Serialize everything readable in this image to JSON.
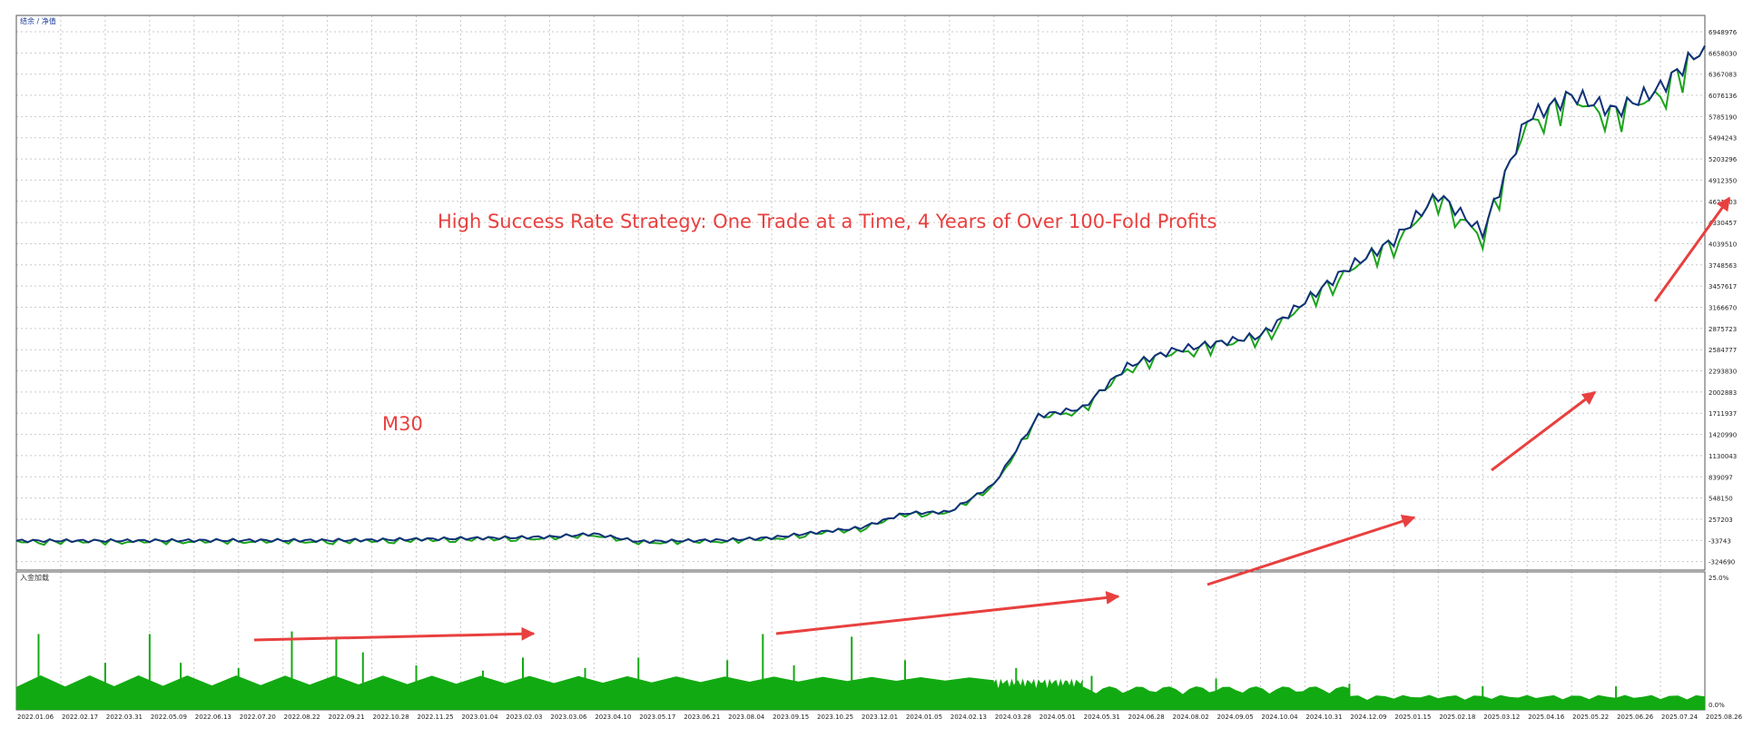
{
  "colors": {
    "background": "#ffffff",
    "grid": "#c8c8c8",
    "balance_line": "#12317a",
    "equity_line": "#1aa31a",
    "load_bars": "#12aa12",
    "annotation_red": "#e8403f",
    "frame": "#555555"
  },
  "header": {
    "legend_text": "结余 / 净值",
    "lower_panel_label": "入金加载"
  },
  "annotations": {
    "headline": "High Success Rate Strategy: One Trade at a Time, 4 Years of Over 100-Fold Profits",
    "timeframe": "M30"
  },
  "chart_data": [
    {
      "type": "line",
      "name": "balance-equity",
      "x_tick_labels": [
        "2022.01.06",
        "2022.02.17",
        "2022.03.31",
        "2022.05.09",
        "2022.06.13",
        "2022.07.20",
        "2022.08.22",
        "2022.09.21",
        "2022.10.28",
        "2022.11.25",
        "2023.01.04",
        "2023.02.03",
        "2023.03.06",
        "2023.04.10",
        "2023.05.17",
        "2023.06.21",
        "2023.08.04",
        "2023.09.15",
        "2023.10.25",
        "2023.12.01",
        "2024.01.05",
        "2024.02.13",
        "2024.03.28",
        "2024.05.01",
        "2024.05.31",
        "2024.06.28",
        "2024.08.02",
        "2024.09.05",
        "2024.10.04",
        "2024.10.31",
        "2024.12.09",
        "2025.01.15",
        "2025.02.18",
        "2025.03.12",
        "2025.04.16",
        "2025.05.22",
        "2025.06.26",
        "2025.07.24",
        "2025.08.26"
      ],
      "y_tick_labels": [
        "6948976",
        "6658030",
        "6367083",
        "6076136",
        "5785190",
        "5494243",
        "5203296",
        "4912350",
        "4621403",
        "4330457",
        "4039510",
        "3748563",
        "3457617",
        "3166670",
        "2875723",
        "2584777",
        "2293830",
        "2002883",
        "1711937",
        "1420990",
        "1130043",
        "839097",
        "548150",
        "257203",
        "-33743",
        "-324690"
      ],
      "ylim": [
        -324690,
        6948976
      ],
      "x": [
        0,
        1,
        2,
        3,
        4,
        5,
        6,
        7,
        8,
        9,
        10,
        11,
        12,
        13,
        14,
        15,
        16,
        17,
        18,
        19,
        20,
        21,
        22,
        23,
        24,
        25,
        26,
        27,
        28,
        29,
        30,
        31,
        32,
        33,
        34,
        35,
        36,
        37,
        38
      ],
      "series": [
        {
          "values": [
            60000,
            60000,
            60000,
            62000,
            64000,
            65000,
            65000,
            65000,
            70000,
            80000,
            90000,
            100000,
            110000,
            150000,
            50000,
            60000,
            70000,
            100000,
            170000,
            230000,
            420000,
            440000,
            800000,
            1700000,
            1800000,
            2350000,
            2550000,
            2650000,
            2750000,
            3200000,
            3650000,
            4000000,
            4600000,
            4100000,
            5600000,
            5900000,
            5700000,
            6000000,
            6550000
          ]
        }
      ]
    },
    {
      "type": "bar",
      "name": "deposit-load",
      "y_tick_labels": [
        "25.0%",
        "0.0%"
      ],
      "ylim": [
        0,
        25
      ],
      "baseline_segments": [
        {
          "from": 0,
          "to": 22,
          "level": 4.4
        },
        {
          "from": 22,
          "to": 24,
          "level": 4.0
        },
        {
          "from": 24,
          "to": 30,
          "level": 3.0
        },
        {
          "from": 30,
          "to": 38,
          "level": 1.9
        }
      ],
      "spikes": [
        {
          "x": 0.5,
          "value": 14.5
        },
        {
          "x": 2.0,
          "value": 9.0
        },
        {
          "x": 3.0,
          "value": 14.5
        },
        {
          "x": 3.7,
          "value": 9.0
        },
        {
          "x": 5.0,
          "value": 8.0
        },
        {
          "x": 6.2,
          "value": 15.0
        },
        {
          "x": 7.2,
          "value": 14.0
        },
        {
          "x": 7.8,
          "value": 11.0
        },
        {
          "x": 9.0,
          "value": 8.5
        },
        {
          "x": 10.5,
          "value": 7.5
        },
        {
          "x": 11.4,
          "value": 10.0
        },
        {
          "x": 12.8,
          "value": 8.0
        },
        {
          "x": 14.0,
          "value": 10.0
        },
        {
          "x": 16.0,
          "value": 9.5
        },
        {
          "x": 16.8,
          "value": 14.5
        },
        {
          "x": 17.5,
          "value": 8.5
        },
        {
          "x": 18.8,
          "value": 14.0
        },
        {
          "x": 20.0,
          "value": 9.5
        },
        {
          "x": 22.5,
          "value": 8.0
        },
        {
          "x": 24.2,
          "value": 6.5
        },
        {
          "x": 27.0,
          "value": 6.0
        },
        {
          "x": 30.0,
          "value": 5.0
        },
        {
          "x": 33.0,
          "value": 4.5
        },
        {
          "x": 36.0,
          "value": 4.5
        }
      ]
    }
  ]
}
